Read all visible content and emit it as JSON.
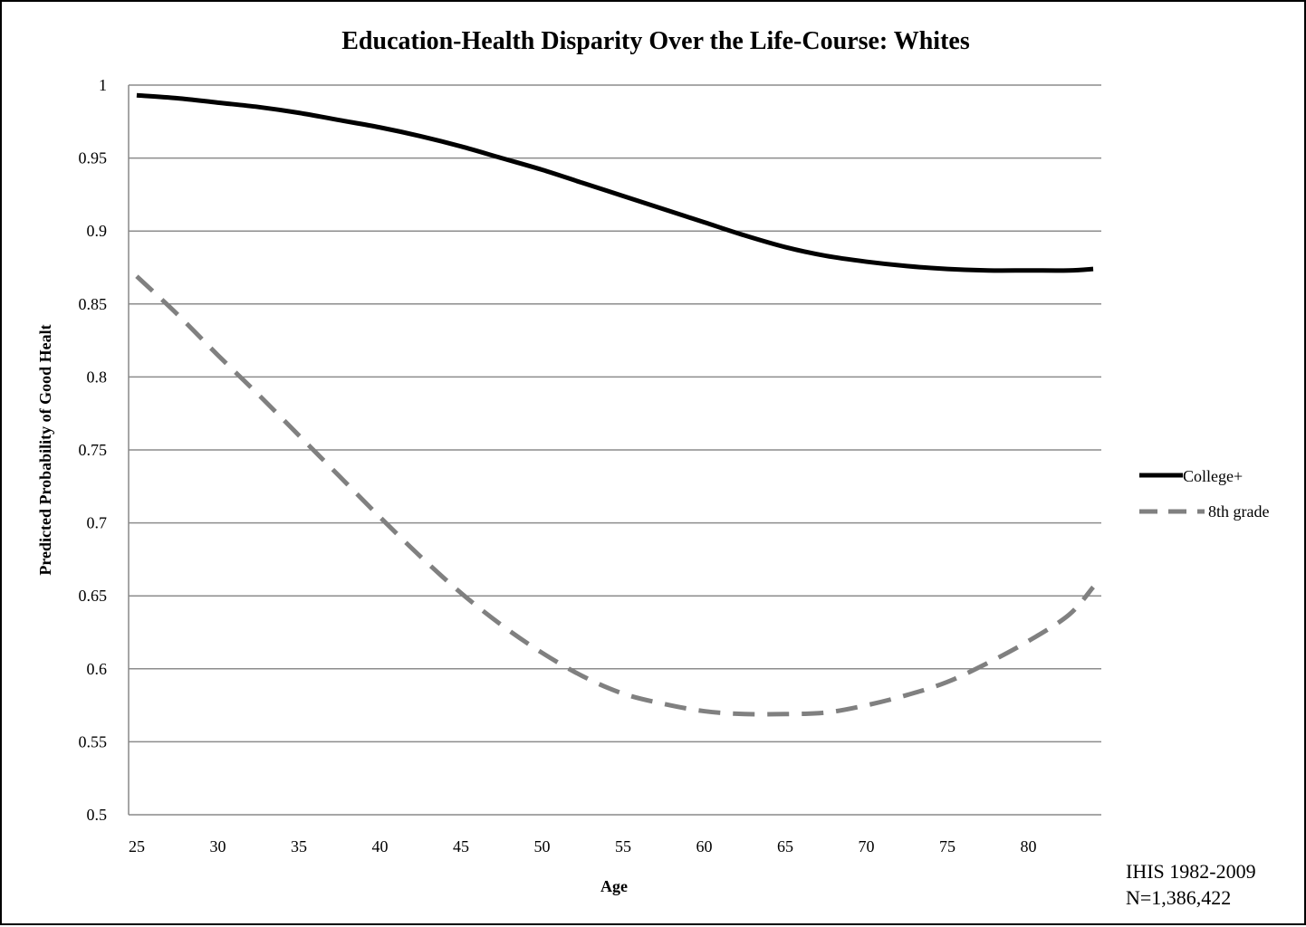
{
  "chart_data": {
    "type": "line",
    "title": "Education-Health Disparity Over the Life-Course: Whites",
    "xlabel": "Age",
    "ylabel": "Predicted Probability of Good Healt",
    "xlim": [
      24.5,
      84.5
    ],
    "ylim": [
      0.5,
      1
    ],
    "x_ticks": [
      "25",
      "30",
      "35",
      "40",
      "45",
      "50",
      "55",
      "60",
      "65",
      "70",
      "75",
      "80"
    ],
    "y_ticks": [
      "0.5",
      "0.55",
      "0.6",
      "0.65",
      "0.7",
      "0.75",
      "0.8",
      "0.85",
      "0.9",
      "0.95",
      "1"
    ],
    "grid": "horizontal",
    "legend_position": "right",
    "x": [
      25,
      27.5,
      30,
      32.5,
      35,
      37.5,
      40,
      42.5,
      45,
      47.5,
      50,
      52.5,
      55,
      57.5,
      60,
      62.5,
      65,
      67.5,
      70,
      72.5,
      75,
      77.5,
      80,
      82.5,
      84
    ],
    "series": [
      {
        "name": "College+",
        "color": "#000000",
        "dash": "solid",
        "values": [
          0.993,
          0.991,
          0.988,
          0.985,
          0.981,
          0.976,
          0.971,
          0.965,
          0.958,
          0.95,
          0.942,
          0.933,
          0.924,
          0.915,
          0.906,
          0.897,
          0.889,
          0.883,
          0.879,
          0.876,
          0.874,
          0.873,
          0.873,
          0.873,
          0.874
        ]
      },
      {
        "name": "8th grade",
        "color": "#808080",
        "dash": "dashed",
        "values": [
          0.869,
          0.843,
          0.815,
          0.788,
          0.76,
          0.732,
          0.704,
          0.677,
          0.652,
          0.63,
          0.611,
          0.595,
          0.583,
          0.576,
          0.571,
          0.569,
          0.569,
          0.57,
          0.575,
          0.582,
          0.591,
          0.604,
          0.619,
          0.637,
          0.656
        ]
      }
    ],
    "annotations": [
      "IHIS 1982-2009",
      "N=1,386,422"
    ]
  }
}
